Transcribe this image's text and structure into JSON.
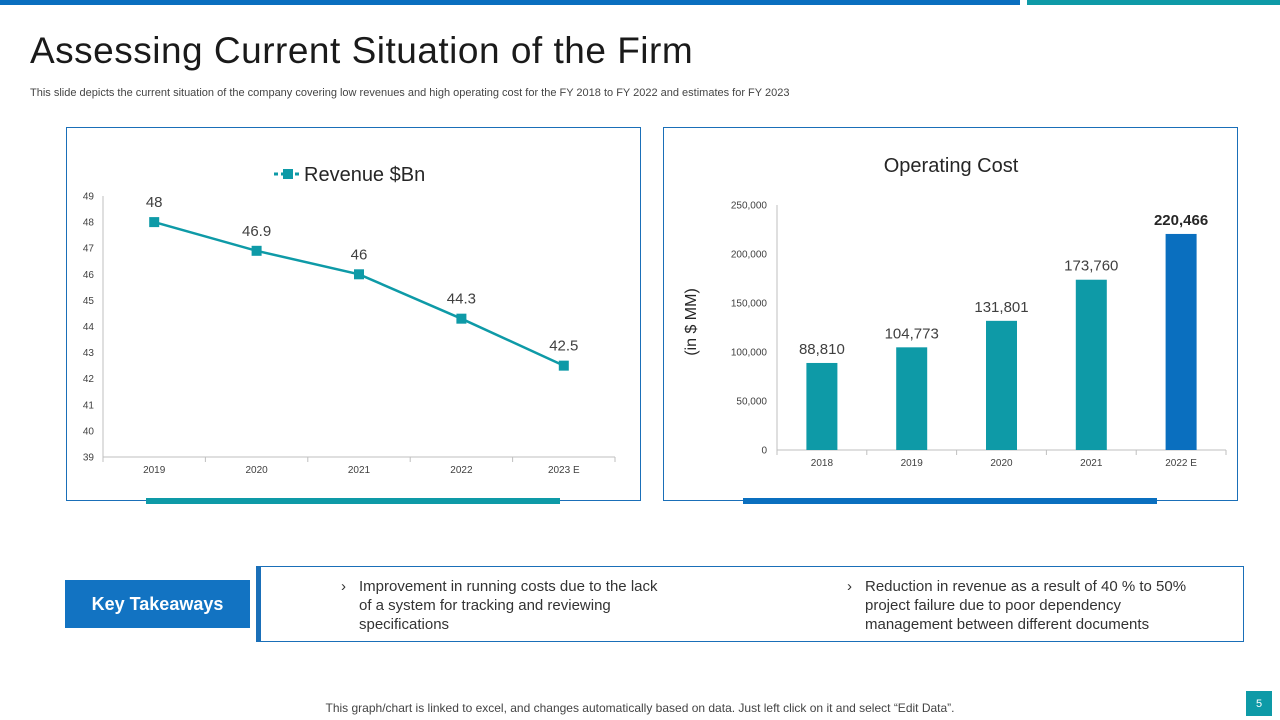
{
  "slide": {
    "title": "Assessing Current Situation of the Firm",
    "subtitle": "This slide depicts the current situation of the company covering low revenues and high operating cost for the FY 2018 to FY 2022 and estimates for FY 2023",
    "footnote": "This graph/chart is linked to excel, and changes automatically based on data. Just left click on it and select “Edit Data”.",
    "page_number": "5"
  },
  "colors": {
    "teal": "#0e9aa7",
    "blue": "#0a6fbf",
    "frame": "#1a6fb8"
  },
  "chart_data": [
    {
      "type": "line",
      "title": "",
      "categories": [
        "2019",
        "2020",
        "2021",
        "2022",
        "2023 E"
      ],
      "series": [
        {
          "name": "Revenue $Bn",
          "values": [
            48,
            46.9,
            46,
            44.3,
            42.5
          ],
          "labels": [
            "48",
            "46.9",
            "46",
            "44.3",
            "42.5"
          ]
        }
      ],
      "ylim": [
        39,
        49
      ],
      "yticks": [
        "39",
        "40",
        "41",
        "42",
        "43",
        "44",
        "45",
        "46",
        "47",
        "48",
        "49"
      ],
      "legend": "top",
      "grid": false
    },
    {
      "type": "bar",
      "title": "Operating Cost",
      "ylabel": "(in $ MM)",
      "categories": [
        "2018",
        "2019",
        "2020",
        "2021",
        "2022 E"
      ],
      "values": [
        88810,
        104773,
        131801,
        173760,
        220466
      ],
      "labels": [
        "88,810",
        "104,773",
        "131,801",
        "173,760",
        "220,466"
      ],
      "ylim": [
        0,
        250000
      ],
      "yticks": [
        "0",
        "50,000",
        "100,000",
        "150,000",
        "200,000",
        "250,000"
      ],
      "colors": [
        "#0e9aa7",
        "#0e9aa7",
        "#0e9aa7",
        "#0e9aa7",
        "#0a6fbf"
      ],
      "grid": false
    }
  ],
  "takeaways": {
    "label": "Key Takeaways",
    "chevron": "›",
    "items": [
      "Improvement  in running  costs due to the lack of a system for tracking and reviewing specifications",
      "Reduction in revenue  as a result of 40 % to 50% project failure due to poor dependency management between different documents"
    ]
  }
}
